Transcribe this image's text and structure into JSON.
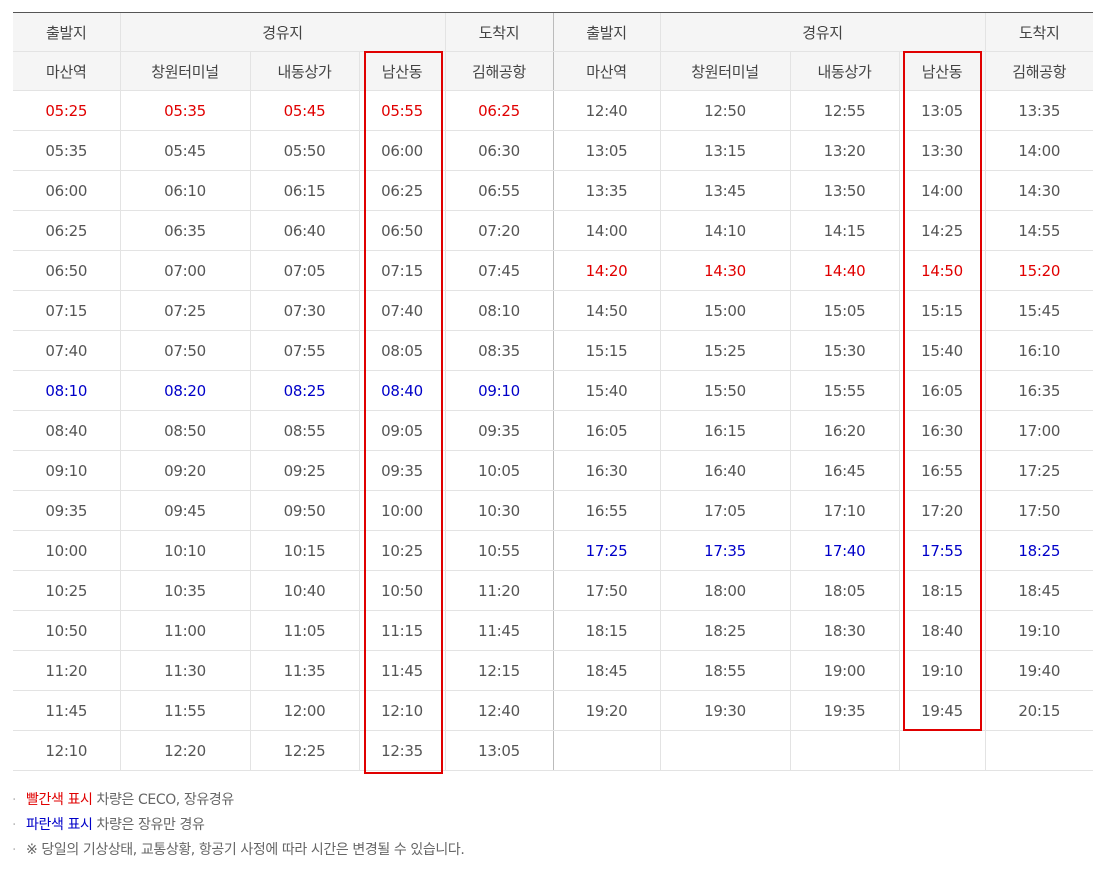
{
  "headers": {
    "group_row": [
      "출발지",
      "경유지",
      "도착지",
      "출발지",
      "경유지",
      "도착지"
    ],
    "stop_row": [
      "마산역",
      "창원터미널",
      "내동상가",
      "남산동",
      "김해공항",
      "마산역",
      "창원터미널",
      "내동상가",
      "남산동",
      "김해공항"
    ]
  },
  "colors": {
    "red": "#e00000",
    "blue": "#0000c8",
    "normal": "#555555"
  },
  "rows": [
    {
      "left": [
        "05:25",
        "05:35",
        "05:45",
        "05:55",
        "06:25"
      ],
      "left_color": "red",
      "right": [
        "12:40",
        "12:50",
        "12:55",
        "13:05",
        "13:35"
      ],
      "right_color": "normal"
    },
    {
      "left": [
        "05:35",
        "05:45",
        "05:50",
        "06:00",
        "06:30"
      ],
      "left_color": "normal",
      "right": [
        "13:05",
        "13:15",
        "13:20",
        "13:30",
        "14:00"
      ],
      "right_color": "normal"
    },
    {
      "left": [
        "06:00",
        "06:10",
        "06:15",
        "06:25",
        "06:55"
      ],
      "left_color": "normal",
      "right": [
        "13:35",
        "13:45",
        "13:50",
        "14:00",
        "14:30"
      ],
      "right_color": "normal"
    },
    {
      "left": [
        "06:25",
        "06:35",
        "06:40",
        "06:50",
        "07:20"
      ],
      "left_color": "normal",
      "right": [
        "14:00",
        "14:10",
        "14:15",
        "14:25",
        "14:55"
      ],
      "right_color": "normal"
    },
    {
      "left": [
        "06:50",
        "07:00",
        "07:05",
        "07:15",
        "07:45"
      ],
      "left_color": "normal",
      "right": [
        "14:20",
        "14:30",
        "14:40",
        "14:50",
        "15:20"
      ],
      "right_color": "red"
    },
    {
      "left": [
        "07:15",
        "07:25",
        "07:30",
        "07:40",
        "08:10"
      ],
      "left_color": "normal",
      "right": [
        "14:50",
        "15:00",
        "15:05",
        "15:15",
        "15:45"
      ],
      "right_color": "normal"
    },
    {
      "left": [
        "07:40",
        "07:50",
        "07:55",
        "08:05",
        "08:35"
      ],
      "left_color": "normal",
      "right": [
        "15:15",
        "15:25",
        "15:30",
        "15:40",
        "16:10"
      ],
      "right_color": "normal"
    },
    {
      "left": [
        "08:10",
        "08:20",
        "08:25",
        "08:40",
        "09:10"
      ],
      "left_color": "blue",
      "right": [
        "15:40",
        "15:50",
        "15:55",
        "16:05",
        "16:35"
      ],
      "right_color": "normal"
    },
    {
      "left": [
        "08:40",
        "08:50",
        "08:55",
        "09:05",
        "09:35"
      ],
      "left_color": "normal",
      "right": [
        "16:05",
        "16:15",
        "16:20",
        "16:30",
        "17:00"
      ],
      "right_color": "normal"
    },
    {
      "left": [
        "09:10",
        "09:20",
        "09:25",
        "09:35",
        "10:05"
      ],
      "left_color": "normal",
      "right": [
        "16:30",
        "16:40",
        "16:45",
        "16:55",
        "17:25"
      ],
      "right_color": "normal"
    },
    {
      "left": [
        "09:35",
        "09:45",
        "09:50",
        "10:00",
        "10:30"
      ],
      "left_color": "normal",
      "right": [
        "16:55",
        "17:05",
        "17:10",
        "17:20",
        "17:50"
      ],
      "right_color": "normal"
    },
    {
      "left": [
        "10:00",
        "10:10",
        "10:15",
        "10:25",
        "10:55"
      ],
      "left_color": "normal",
      "right": [
        "17:25",
        "17:35",
        "17:40",
        "17:55",
        "18:25"
      ],
      "right_color": "blue"
    },
    {
      "left": [
        "10:25",
        "10:35",
        "10:40",
        "10:50",
        "11:20"
      ],
      "left_color": "normal",
      "right": [
        "17:50",
        "18:00",
        "18:05",
        "18:15",
        "18:45"
      ],
      "right_color": "normal"
    },
    {
      "left": [
        "10:50",
        "11:00",
        "11:05",
        "11:15",
        "11:45"
      ],
      "left_color": "normal",
      "right": [
        "18:15",
        "18:25",
        "18:30",
        "18:40",
        "19:10"
      ],
      "right_color": "normal"
    },
    {
      "left": [
        "11:20",
        "11:30",
        "11:35",
        "11:45",
        "12:15"
      ],
      "left_color": "normal",
      "right": [
        "18:45",
        "18:55",
        "19:00",
        "19:10",
        "19:40"
      ],
      "right_color": "normal"
    },
    {
      "left": [
        "11:45",
        "11:55",
        "12:00",
        "12:10",
        "12:40"
      ],
      "left_color": "normal",
      "right": [
        "19:20",
        "19:30",
        "19:35",
        "19:45",
        "20:15"
      ],
      "right_color": "normal"
    },
    {
      "left": [
        "12:10",
        "12:20",
        "12:25",
        "12:35",
        "13:05"
      ],
      "left_color": "normal",
      "right": [
        "",
        "",
        "",
        "",
        ""
      ],
      "right_color": "normal"
    }
  ],
  "notes": [
    {
      "highlight": "빨간색 표시",
      "highlight_color": "red",
      "text": " 차량은 CECO, 장유경유"
    },
    {
      "highlight": "파란색 표시",
      "highlight_color": "blue",
      "text": " 차량은 장유만 경유"
    },
    {
      "highlight": "",
      "highlight_color": "normal",
      "text": "※ 당일의 기상상태, 교통상황, 항공기 사정에 따라 시간은 변경될 수 있습니다."
    }
  ]
}
